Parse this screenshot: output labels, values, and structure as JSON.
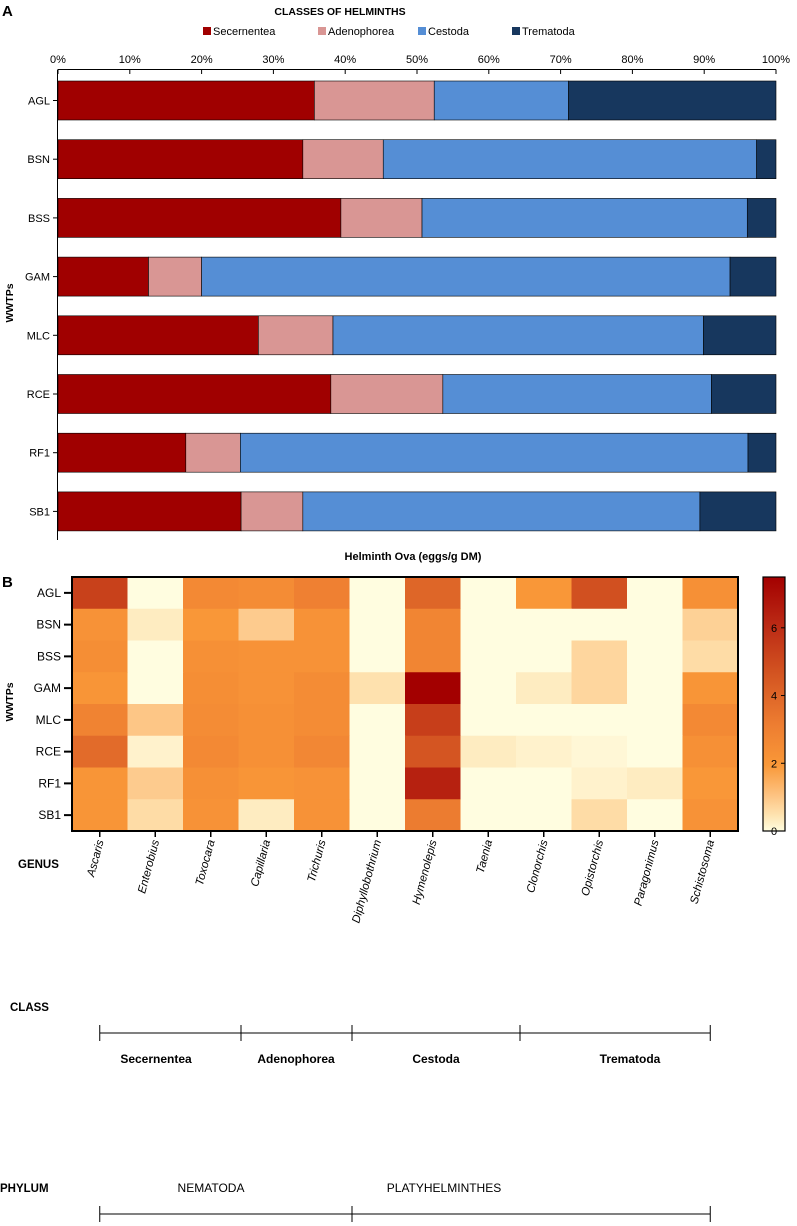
{
  "chart_data": [
    {
      "panel_label": "A",
      "type": "bar",
      "orientation": "horizontal",
      "stacked": true,
      "legend_title": "CLASSES OF HELMINTHS",
      "xticks": [
        "0%",
        "10%",
        "20%",
        "30%",
        "40%",
        "50%",
        "60%",
        "70%",
        "80%",
        "90%",
        "100%"
      ],
      "xlim": [
        0,
        100
      ],
      "ylabel": "WWTPs",
      "categories": [
        "AGL",
        "BSN",
        "BSS",
        "GAM",
        "MLC",
        "RCE",
        "RF1",
        "SB1"
      ],
      "series": [
        {
          "name": "Secernentea",
          "color": "#A00000",
          "values": [
            35.7,
            34.1,
            39.4,
            12.6,
            27.9,
            38.0,
            17.8,
            25.5
          ]
        },
        {
          "name": "Adenophorea",
          "color": "#D99694",
          "values": [
            16.7,
            11.2,
            11.3,
            7.4,
            10.4,
            15.6,
            7.6,
            8.6
          ]
        },
        {
          "name": "Cestoda",
          "color": "#558ED5",
          "values": [
            18.7,
            52.0,
            45.3,
            73.6,
            51.6,
            37.4,
            70.7,
            55.3
          ]
        },
        {
          "name": "Trematoda",
          "color": "#17375E",
          "values": [
            28.9,
            2.7,
            4.0,
            6.4,
            10.1,
            9.0,
            3.9,
            10.6
          ]
        }
      ]
    },
    {
      "panel_label": "B",
      "type": "heatmap",
      "title": "Helminth Ova (eggs/g DM)",
      "ylabel": "WWTPs",
      "rows": [
        "AGL",
        "BSN",
        "BSS",
        "GAM",
        "MLC",
        "RCE",
        "RF1",
        "SB1"
      ],
      "columns": [
        "Ascaris",
        "Enterobius",
        "Toxocara",
        "Capillaria",
        "Trichuris",
        "Diphyllobothrium",
        "Hymenolepis",
        "Taenia",
        "Clonorchis",
        "Opistorchis",
        "Paragonimus",
        "Schistosoma"
      ],
      "values": [
        [
          5.3,
          0.0,
          2.6,
          2.5,
          3.0,
          0.0,
          4.0,
          0.0,
          2.0,
          4.8,
          0.0,
          2.3
        ],
        [
          2.2,
          0.3,
          2.0,
          0.9,
          2.2,
          0.0,
          2.8,
          0.0,
          0.0,
          0.0,
          0.0,
          0.8
        ],
        [
          2.4,
          0.0,
          2.3,
          2.2,
          2.2,
          0.0,
          2.8,
          0.0,
          0.0,
          0.7,
          0.0,
          0.6
        ],
        [
          2.1,
          0.0,
          2.4,
          2.2,
          2.5,
          0.5,
          7.5,
          0.0,
          0.3,
          0.7,
          0.0,
          2.1
        ],
        [
          2.9,
          1.0,
          2.5,
          2.3,
          2.5,
          0.0,
          5.4,
          0.0,
          0.0,
          0.0,
          0.0,
          2.6
        ],
        [
          3.8,
          0.2,
          2.6,
          2.3,
          2.7,
          0.0,
          4.6,
          0.3,
          0.2,
          0.1,
          0.0,
          2.3
        ],
        [
          2.1,
          0.9,
          2.3,
          2.1,
          2.2,
          0.0,
          6.4,
          0.0,
          0.0,
          0.2,
          0.3,
          2.0
        ],
        [
          2.1,
          0.6,
          2.2,
          0.3,
          2.2,
          0.0,
          3.2,
          0.0,
          0.0,
          0.6,
          0.0,
          2.2
        ]
      ],
      "colorbar": {
        "min": 0,
        "max": 7.5,
        "ticks": [
          "0",
          "2",
          "4",
          "6"
        ],
        "low_color": "#FFFDE0",
        "high_color": "#A30000"
      },
      "genus_label": "GENUS",
      "class_label": "CLASS",
      "phylum_label": "PHYLUM",
      "classes": [
        {
          "name": "Secernentea",
          "from": 0,
          "to": 2
        },
        {
          "name": "Adenophorea",
          "from": 3,
          "to": 4
        },
        {
          "name": "Cestoda",
          "from": 5,
          "to": 7
        },
        {
          "name": "Trematoda",
          "from": 8,
          "to": 11
        }
      ],
      "phyla": [
        {
          "name": "NEMATODA",
          "from": 0,
          "to": 4
        },
        {
          "name": "PLATYHELMINTHES",
          "from": 5,
          "to": 11
        }
      ]
    }
  ]
}
